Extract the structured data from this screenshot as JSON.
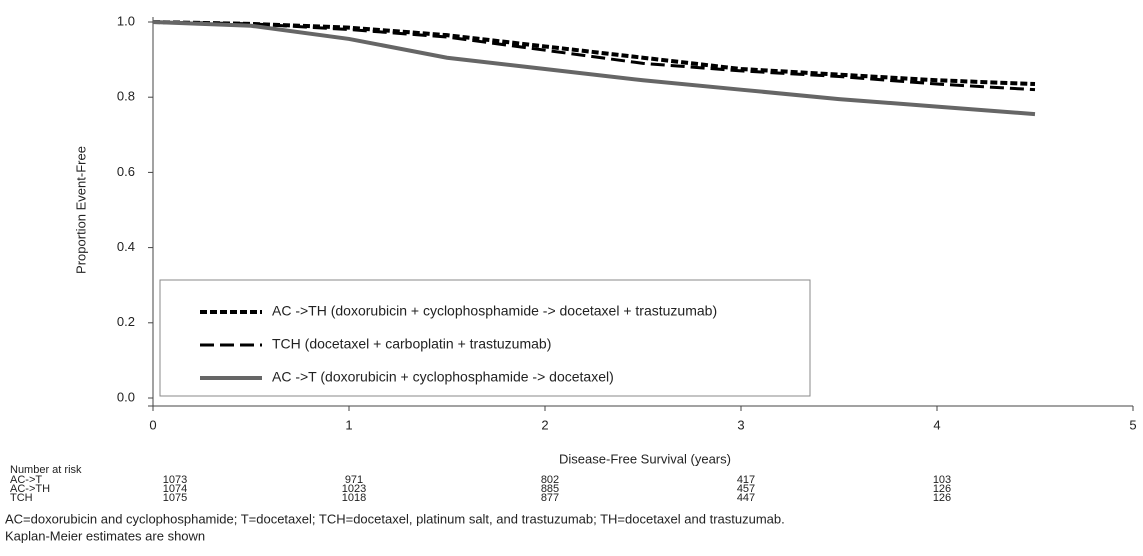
{
  "chart_data": {
    "type": "line",
    "y_label": "Proportion Event-Free",
    "x_label": "Disease-Free Survival (years)",
    "x": [
      0,
      0.5,
      1,
      1.5,
      2,
      2.5,
      3,
      3.5,
      4,
      4.5
    ],
    "series": [
      {
        "name": "AC ->TH (doxorubicin + cyclophosphamide -> docetaxel + trastuzumab)",
        "color": "#000000",
        "style": "dotted",
        "values": [
          1,
          0.995,
          0.985,
          0.965,
          0.935,
          0.905,
          0.875,
          0.86,
          0.845,
          0.835
        ]
      },
      {
        "name": "TCH (docetaxel + carboplatin + trastuzumab)",
        "color": "#000000",
        "style": "dashed",
        "values": [
          1,
          0.995,
          0.98,
          0.96,
          0.925,
          0.89,
          0.87,
          0.855,
          0.835,
          0.82
        ]
      },
      {
        "name": "AC ->T (doxorubicin + cyclophosphamide -> docetaxel)",
        "color": "#666666",
        "style": "solid",
        "values": [
          1,
          0.99,
          0.955,
          0.905,
          0.875,
          0.845,
          0.82,
          0.795,
          0.775,
          0.755
        ]
      }
    ],
    "xlim": [
      0,
      5
    ],
    "xticks": [
      0,
      1,
      2,
      3,
      4,
      5
    ],
    "ylim": [
      0,
      1
    ],
    "yticks": [
      {
        "value": 0,
        "label": "0.0"
      },
      0.2,
      0.4,
      0.6,
      0.8,
      {
        "value": 1,
        "label": "1.0"
      }
    ],
    "legend": "lower-left",
    "risk_table": {
      "title": "Number at risk",
      "rows": [
        {
          "name": "AC->T",
          "values": [
            1073,
            971,
            802,
            417,
            103
          ]
        },
        {
          "name": "AC->TH",
          "values": [
            1074,
            1023,
            885,
            457,
            126
          ]
        },
        {
          "name": "TCH",
          "values": [
            1075,
            1018,
            877,
            447,
            126
          ]
        }
      ]
    },
    "notes": [
      "AC=doxorubicin and cyclophosphamide; T=docetaxel; TCH=docetaxel, platinum salt, and trastuzumab; TH=docetaxel and trastuzumab.",
      "Kaplan-Meier estimates are shown"
    ]
  }
}
